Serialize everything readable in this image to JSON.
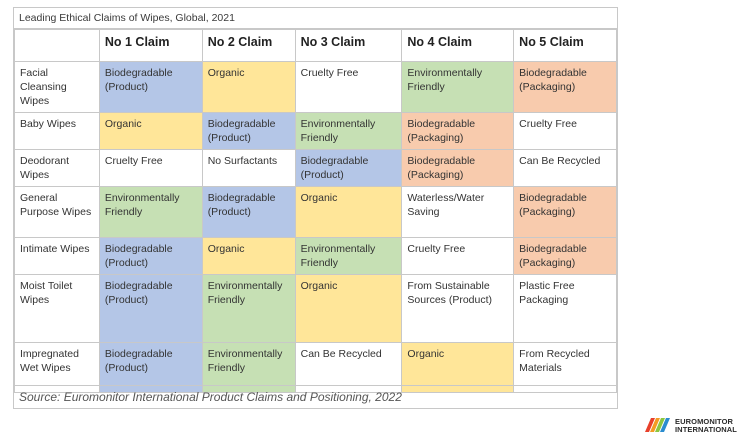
{
  "title": "Leading Ethical Claims of Wipes, Global, 2021",
  "columns": [
    "",
    "No 1 Claim",
    "No 2 Claim",
    "No 3 Claim",
    "No 4 Claim",
    "No 5 Claim"
  ],
  "rows": [
    {
      "label": "Facial Cleansing Wipes",
      "cells": [
        {
          "text": "Biodegradable (Product)",
          "color": "blue"
        },
        {
          "text": "Organic",
          "color": "yellow"
        },
        {
          "text": "Cruelty Free",
          "color": "white"
        },
        {
          "text": "Environmentally Friendly",
          "color": "green"
        },
        {
          "text": "Biodegradable (Packaging)",
          "color": "peach"
        }
      ]
    },
    {
      "label": "Baby Wipes",
      "cells": [
        {
          "text": "Organic",
          "color": "yellow"
        },
        {
          "text": "Biodegradable (Product)",
          "color": "blue"
        },
        {
          "text": "Environmentally Friendly",
          "color": "green"
        },
        {
          "text": "Biodegradable (Packaging)",
          "color": "peach"
        },
        {
          "text": "Cruelty Free",
          "color": "white"
        }
      ]
    },
    {
      "label": "Deodorant Wipes",
      "cells": [
        {
          "text": "Cruelty Free",
          "color": "white"
        },
        {
          "text": "No Surfactants",
          "color": "white"
        },
        {
          "text": "Biodegradable (Product)",
          "color": "blue"
        },
        {
          "text": "Biodegradable (Packaging)",
          "color": "peach"
        },
        {
          "text": "Can Be Recycled",
          "color": "white"
        }
      ]
    },
    {
      "label": "General Purpose Wipes",
      "cells": [
        {
          "text": "Environmentally Friendly",
          "color": "green"
        },
        {
          "text": "Biodegradable (Product)",
          "color": "blue"
        },
        {
          "text": "Organic",
          "color": "yellow"
        },
        {
          "text": "Waterless/Water Saving",
          "color": "white"
        },
        {
          "text": "Biodegradable (Packaging)",
          "color": "peach"
        }
      ]
    },
    {
      "label": "Intimate Wipes",
      "cells": [
        {
          "text": "Biodegradable (Product)",
          "color": "blue"
        },
        {
          "text": "Organic",
          "color": "yellow"
        },
        {
          "text": "Environmentally Friendly",
          "color": "green"
        },
        {
          "text": "Cruelty Free",
          "color": "white"
        },
        {
          "text": "Biodegradable (Packaging)",
          "color": "peach"
        }
      ]
    },
    {
      "label": "Moist Toilet Wipes",
      "cells": [
        {
          "text": "Biodegradable (Product)",
          "color": "blue"
        },
        {
          "text": "Environmentally Friendly",
          "color": "green"
        },
        {
          "text": "Organic",
          "color": "yellow"
        },
        {
          "text": "From Sustainable Sources (Product)",
          "color": "white"
        },
        {
          "text": "Plastic Free Packaging",
          "color": "white"
        }
      ]
    },
    {
      "label": "Impregnated Wet Wipes",
      "cells": [
        {
          "text": "Biodegradable (Product)",
          "color": "blue"
        },
        {
          "text": "Environmentally Friendly",
          "color": "green"
        },
        {
          "text": "Can Be Recycled",
          "color": "white"
        },
        {
          "text": "Organic",
          "color": "yellow"
        },
        {
          "text": "From Recycled Materials",
          "color": "white"
        }
      ]
    }
  ],
  "colors": {
    "blue": "#b4c6e7",
    "yellow": "#ffe699",
    "green": "#c6e0b4",
    "peach": "#f8cbad",
    "white": "#ffffff"
  },
  "source": "Source: Euromonitor International Product Claims and Positioning, 2022",
  "logo": {
    "line1": "EUROMONITOR",
    "line2": "INTERNATIONAL",
    "icon": "euromonitor-logo-icon"
  }
}
